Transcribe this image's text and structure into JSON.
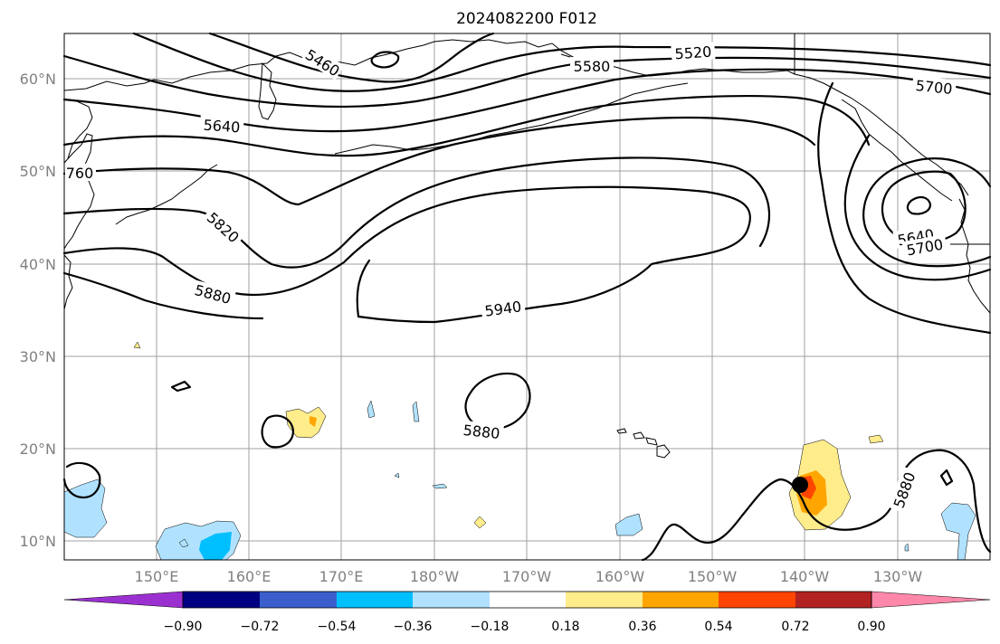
{
  "title": "2024082200 F012",
  "lat_labels": [
    "60°N",
    "50°N",
    "40°N",
    "30°N",
    "20°N",
    "10°N"
  ],
  "lon_labels": [
    "150°E",
    "160°E",
    "170°E",
    "180°W",
    "170°W",
    "160°W",
    "150°W",
    "140°W",
    "130°W"
  ],
  "contour_labels": [
    "5460",
    "5520",
    "5580",
    "5640",
    "5700",
    "760",
    "5820",
    "5880",
    "5940",
    "5880",
    "5640",
    "5700",
    "5880"
  ],
  "colorbar": {
    "colors": [
      "#9b30d0",
      "#000080",
      "#3a5fcd",
      "#00bfff",
      "#b0e2ff",
      "#ffffff",
      "#ffec8b",
      "#ffa500",
      "#ff4500",
      "#b22222",
      "#ff88aa"
    ],
    "tick_labels": [
      "−0.90",
      "−0.72",
      "−0.54",
      "−0.36",
      "−0.18",
      "0.18",
      "0.36",
      "0.54",
      "0.72",
      "0.90"
    ]
  },
  "colors": {
    "contour": "#000000",
    "grid": "#a0a0a0",
    "positive_shade": "#ffec8b",
    "negative_shade": "#b0e2ff"
  }
}
